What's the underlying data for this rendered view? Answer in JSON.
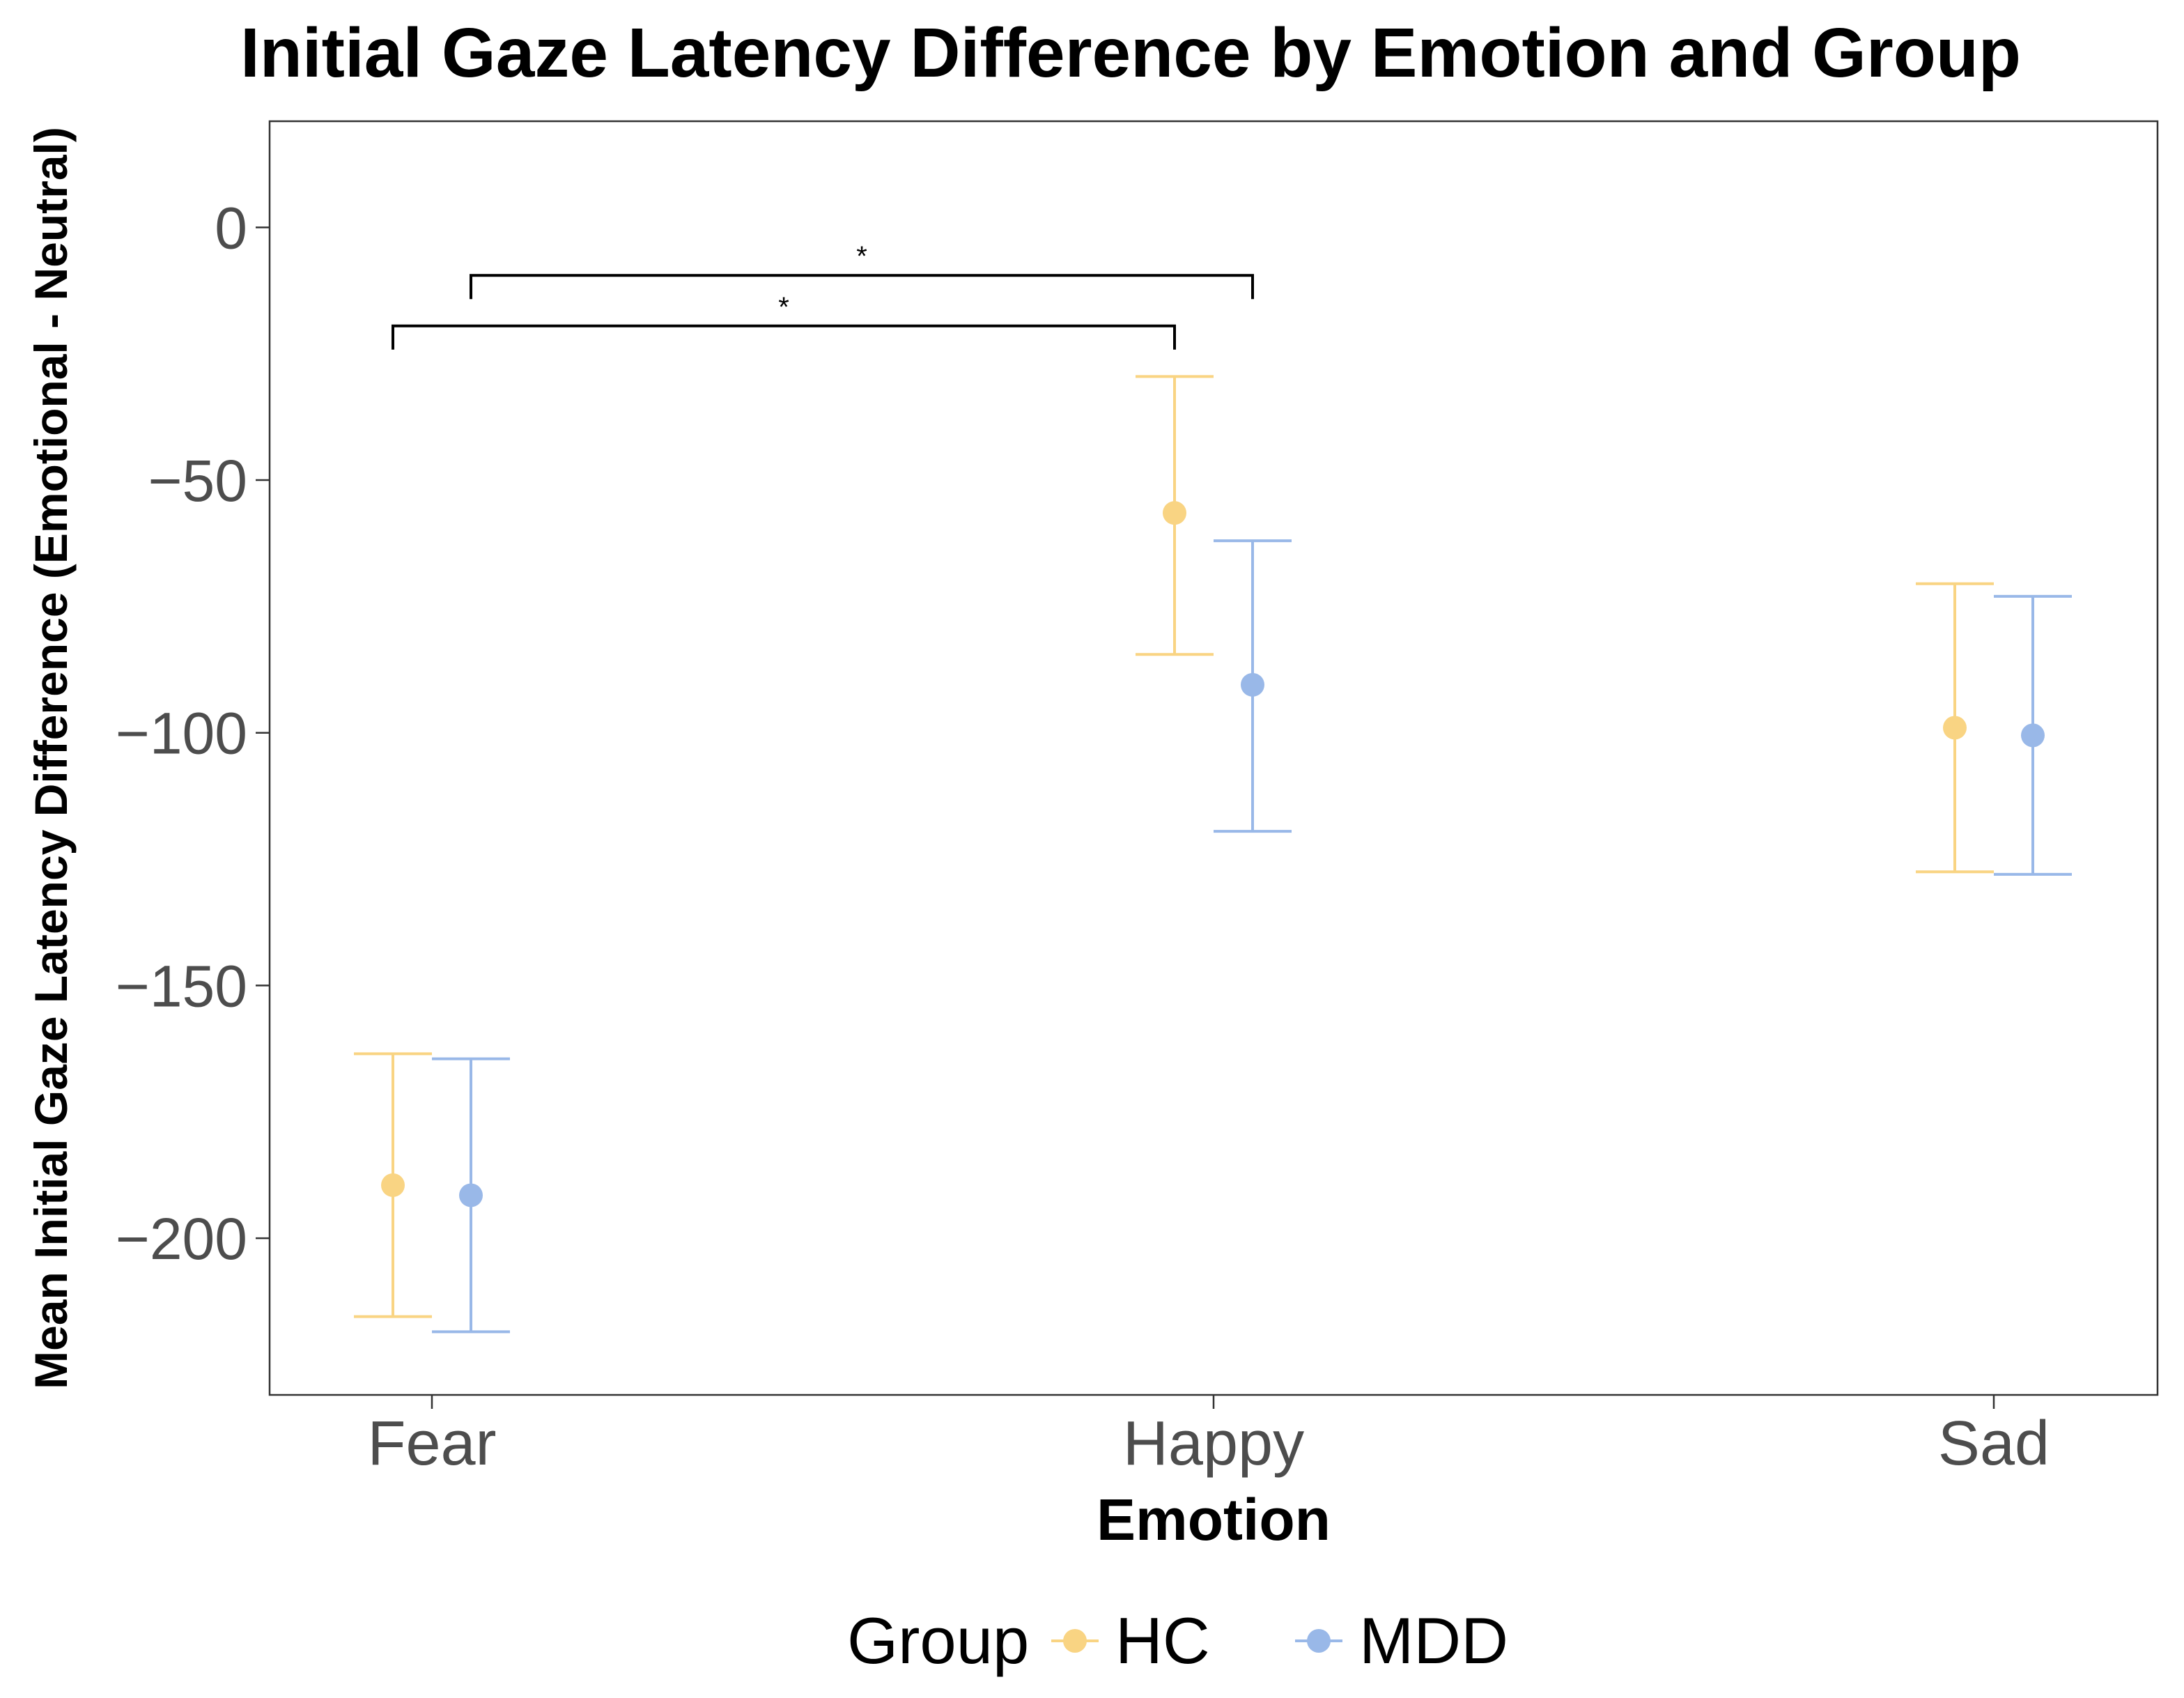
{
  "chart_data": {
    "type": "errorbar-point",
    "title": "Initial Gaze Latency Difference by Emotion and Group",
    "xlabel": "Emotion",
    "ylabel": "Mean Initial Gaze Latency Difference (Emotional - Neutral)",
    "categories": [
      "Fear",
      "Happy",
      "Sad"
    ],
    "ylim": [
      -231,
      21
    ],
    "yticks": [
      0,
      -50,
      -100,
      -150,
      -200
    ],
    "ytick_labels": [
      "0",
      "−50",
      "−100",
      "−150",
      "−200"
    ],
    "grid": false,
    "legend": {
      "title": "Group",
      "position": "bottom"
    },
    "series": [
      {
        "name": "HC",
        "color": "#F9D483",
        "means": [
          -189.5,
          -56.5,
          -99
        ],
        "lower": [
          -215.5,
          -84.5,
          -127.5
        ],
        "upper": [
          -163.5,
          -29.5,
          -70.5
        ]
      },
      {
        "name": "MDD",
        "color": "#99B8E8",
        "means": [
          -191.5,
          -90.5,
          -100.5
        ],
        "lower": [
          -218.5,
          -119.5,
          -128
        ],
        "upper": [
          -164.5,
          -62,
          -73
        ]
      }
    ],
    "annotations": [
      {
        "label": "*",
        "from": {
          "category": "Fear",
          "series": "HC"
        },
        "to": {
          "category": "Happy",
          "series": "HC"
        },
        "y": -19.5
      },
      {
        "label": "*",
        "from": {
          "category": "Fear",
          "series": "MDD"
        },
        "to": {
          "category": "Happy",
          "series": "MDD"
        },
        "y": -9.5
      }
    ]
  }
}
